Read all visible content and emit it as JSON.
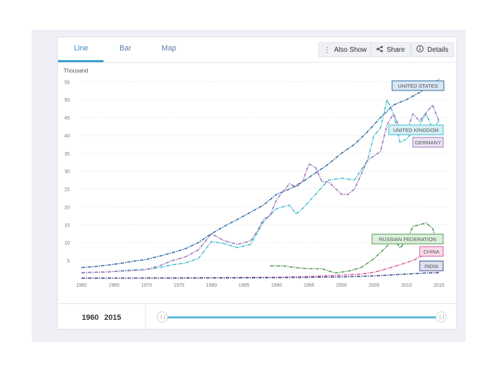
{
  "tabs": {
    "line": "Line",
    "bar": "Bar",
    "map": "Map"
  },
  "toolbar": {
    "also_show": "Also Show",
    "share": "Share",
    "details": "Details"
  },
  "range": {
    "start": "1960",
    "end": "2015"
  },
  "colors": {
    "accent": "#3aa0cf"
  },
  "chart_data": {
    "type": "line",
    "ylabel": "Thousand",
    "x_ticks": [
      "1960",
      "1965",
      "1970",
      "1975",
      "1980",
      "1985",
      "1990",
      "1995",
      "2000",
      "2005",
      "2010",
      "2015"
    ],
    "y_ticks": [
      "5",
      "10",
      "15",
      "20",
      "25",
      "30",
      "35",
      "40",
      "45",
      "50",
      "55"
    ],
    "xlim": [
      1960,
      2015
    ],
    "ylim": [
      0,
      57
    ],
    "grid": true,
    "series": [
      {
        "name": "UNITED STATES",
        "color": "#2e6a9f",
        "label_bg": "#d7e6f4",
        "label_border": "#2e6a9f",
        "points": [
          [
            1960,
            3.0
          ],
          [
            1962,
            3.3
          ],
          [
            1964,
            3.7
          ],
          [
            1966,
            4.2
          ],
          [
            1968,
            4.8
          ],
          [
            1970,
            5.3
          ],
          [
            1972,
            6.2
          ],
          [
            1974,
            7.2
          ],
          [
            1976,
            8.3
          ],
          [
            1978,
            10.0
          ],
          [
            1980,
            12.5
          ],
          [
            1982,
            14.6
          ],
          [
            1984,
            16.5
          ],
          [
            1986,
            18.5
          ],
          [
            1988,
            20.5
          ],
          [
            1990,
            23.5
          ],
          [
            1992,
            25.0
          ],
          [
            1994,
            27.0
          ],
          [
            1996,
            29.5
          ],
          [
            1998,
            32.0
          ],
          [
            2000,
            35.0
          ],
          [
            2002,
            37.5
          ],
          [
            2004,
            41.0
          ],
          [
            2006,
            45.0
          ],
          [
            2008,
            48.5
          ],
          [
            2010,
            50.0
          ],
          [
            2012,
            52.0
          ],
          [
            2014,
            54.0
          ],
          [
            2015,
            55.8
          ]
        ]
      },
      {
        "name": "UNITED KINGDOM",
        "color": "#3fbcd1",
        "label_bg": "#d6f0f4",
        "label_border": "#3fbcd1",
        "points": [
          [
            1960,
            1.5
          ],
          [
            1962,
            1.7
          ],
          [
            1964,
            1.8
          ],
          [
            1966,
            2.1
          ],
          [
            1968,
            2.4
          ],
          [
            1970,
            2.5
          ],
          [
            1972,
            3.0
          ],
          [
            1974,
            3.8
          ],
          [
            1976,
            4.3
          ],
          [
            1978,
            5.6
          ],
          [
            1980,
            10.3
          ],
          [
            1982,
            9.7
          ],
          [
            1984,
            8.6
          ],
          [
            1986,
            9.5
          ],
          [
            1988,
            15.8
          ],
          [
            1990,
            19.5
          ],
          [
            1992,
            20.5
          ],
          [
            1993,
            18.0
          ],
          [
            1994,
            19.5
          ],
          [
            1996,
            23.5
          ],
          [
            1998,
            27.5
          ],
          [
            2000,
            28.0
          ],
          [
            2002,
            27.5
          ],
          [
            2004,
            33.0
          ],
          [
            2005,
            40.0
          ],
          [
            2006,
            42.0
          ],
          [
            2007,
            50.0
          ],
          [
            2008,
            46.0
          ],
          [
            2009,
            38.0
          ],
          [
            2010,
            39.0
          ],
          [
            2012,
            43.0
          ],
          [
            2013,
            46.0
          ],
          [
            2014,
            42.0
          ],
          [
            2015,
            44.0
          ]
        ]
      },
      {
        "name": "GERMANY",
        "color": "#9a74b8",
        "label_bg": "#ece4f4",
        "label_border": "#9a74b8",
        "points": [
          [
            1960,
            1.6
          ],
          [
            1962,
            1.7
          ],
          [
            1964,
            1.8
          ],
          [
            1966,
            2.0
          ],
          [
            1968,
            2.2
          ],
          [
            1970,
            2.5
          ],
          [
            1972,
            3.5
          ],
          [
            1974,
            5.0
          ],
          [
            1976,
            6.0
          ],
          [
            1978,
            8.0
          ],
          [
            1980,
            12.5
          ],
          [
            1982,
            10.5
          ],
          [
            1984,
            9.5
          ],
          [
            1986,
            10.5
          ],
          [
            1987,
            13.0
          ],
          [
            1988,
            16.5
          ],
          [
            1989,
            17.5
          ],
          [
            1990,
            22.0
          ],
          [
            1992,
            26.5
          ],
          [
            1993,
            25.5
          ],
          [
            1994,
            27.0
          ],
          [
            1995,
            32.0
          ],
          [
            1996,
            31.0
          ],
          [
            1997,
            27.0
          ],
          [
            1998,
            27.0
          ],
          [
            2000,
            23.5
          ],
          [
            2001,
            23.5
          ],
          [
            2002,
            25.0
          ],
          [
            2004,
            33.0
          ],
          [
            2006,
            35.5
          ],
          [
            2007,
            43.0
          ],
          [
            2008,
            46.0
          ],
          [
            2009,
            42.0
          ],
          [
            2010,
            41.0
          ],
          [
            2011,
            46.0
          ],
          [
            2012,
            44.0
          ],
          [
            2014,
            48.5
          ],
          [
            2015,
            44.0
          ]
        ]
      },
      {
        "name": "RUSSIAN FEDERATION",
        "color": "#4e9a52",
        "label_bg": "#dcefdc",
        "label_border": "#4e9a52",
        "points": [
          [
            1989,
            3.5
          ],
          [
            1991,
            3.5
          ],
          [
            1993,
            3.0
          ],
          [
            1995,
            2.7
          ],
          [
            1997,
            2.7
          ],
          [
            1999,
            1.5
          ],
          [
            2001,
            2.0
          ],
          [
            2003,
            3.0
          ],
          [
            2005,
            5.5
          ],
          [
            2007,
            9.0
          ],
          [
            2008,
            11.5
          ],
          [
            2009,
            8.5
          ],
          [
            2010,
            10.5
          ],
          [
            2011,
            14.5
          ],
          [
            2012,
            15.0
          ],
          [
            2013,
            15.5
          ],
          [
            2014,
            14.0
          ],
          [
            2015,
            9.5
          ]
        ]
      },
      {
        "name": "CHINA",
        "color": "#d95b9b",
        "label_bg": "#f9dbe9",
        "label_border": "#d95b9b",
        "points": [
          [
            1960,
            0.1
          ],
          [
            1970,
            0.1
          ],
          [
            1980,
            0.2
          ],
          [
            1990,
            0.3
          ],
          [
            1995,
            0.5
          ],
          [
            2000,
            0.9
          ],
          [
            2003,
            1.2
          ],
          [
            2005,
            1.7
          ],
          [
            2007,
            2.7
          ],
          [
            2009,
            3.8
          ],
          [
            2011,
            5.0
          ],
          [
            2013,
            6.8
          ],
          [
            2015,
            8.0
          ]
        ]
      },
      {
        "name": "INDIA",
        "color": "#3e4f8a",
        "label_bg": "#dde1ef",
        "label_border": "#3e4f8a",
        "points": [
          [
            1960,
            0.05
          ],
          [
            1970,
            0.08
          ],
          [
            1980,
            0.1
          ],
          [
            1990,
            0.2
          ],
          [
            2000,
            0.4
          ],
          [
            2005,
            0.7
          ],
          [
            2010,
            1.2
          ],
          [
            2013,
            1.5
          ],
          [
            2015,
            1.6
          ]
        ]
      }
    ]
  }
}
